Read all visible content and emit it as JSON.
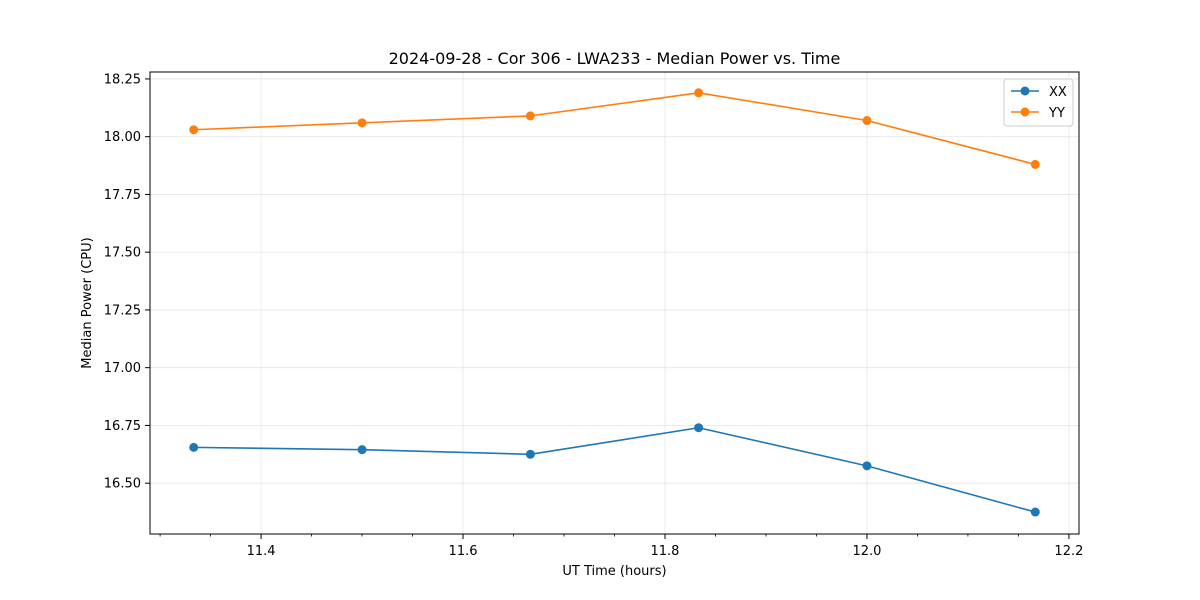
{
  "chart_data": {
    "type": "line",
    "title": "2024-09-28 - Cor 306 - LWA233 - Median Power vs. Time",
    "xlabel": "UT Time (hours)",
    "ylabel": "Median Power (CPU)",
    "xlim": [
      11.29,
      12.21
    ],
    "ylim": [
      16.28,
      18.28
    ],
    "grid": true,
    "legend_position": "top-right",
    "x_ticks": [
      "11.4",
      "11.6",
      "11.8",
      "12.0",
      "12.2"
    ],
    "y_ticks": [
      "16.50",
      "16.75",
      "17.00",
      "17.25",
      "17.50",
      "17.75",
      "18.00",
      "18.25"
    ],
    "x": [
      11.3333,
      11.5,
      11.6667,
      11.8333,
      12.0,
      12.1667
    ],
    "series": [
      {
        "name": "XX",
        "color": "#1f77b4",
        "values": [
          16.655,
          16.645,
          16.625,
          16.74,
          16.575,
          16.375
        ]
      },
      {
        "name": "YY",
        "color": "#ff7f0e",
        "values": [
          18.03,
          18.06,
          18.09,
          18.19,
          18.07,
          17.88
        ]
      }
    ]
  }
}
